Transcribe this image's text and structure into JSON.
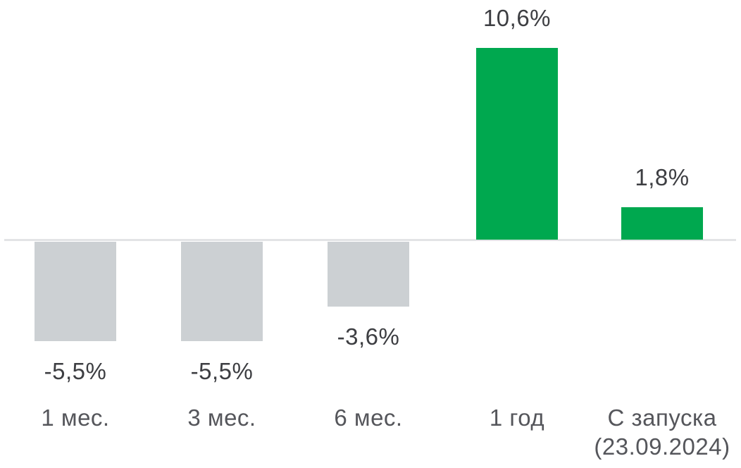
{
  "chart_data": {
    "type": "bar",
    "title": "",
    "xlabel": "",
    "ylabel": "",
    "categories": [
      "1 мес.",
      "3 мес.",
      "6 мес.",
      "1 год",
      "С запуска (23.09.2024)"
    ],
    "values": [
      -5.5,
      -5.5,
      -3.6,
      10.6,
      1.8
    ],
    "bars": [
      {
        "category": "1 мес.",
        "category_line2": "",
        "value": -5.5,
        "label": "-5,5%"
      },
      {
        "category": "3 мес.",
        "category_line2": "",
        "value": -5.5,
        "label": "-5,5%"
      },
      {
        "category": "6 мес.",
        "category_line2": "",
        "value": -3.6,
        "label": "-3,6%"
      },
      {
        "category": "1 год",
        "category_line2": "",
        "value": 10.6,
        "label": "10,6%"
      },
      {
        "category": "С запуска",
        "category_line2": "(23.09.2024)",
        "value": 1.8,
        "label": "1,8%"
      }
    ],
    "ylim": [
      -6.5,
      11.5
    ],
    "grid": false,
    "legend": false,
    "baseline": 0,
    "colors": {
      "positive_bar": "#00a84f",
      "negative_bar": "#ccd0d3",
      "value_label": "#3d3e42",
      "category_label": "#55565b",
      "axis_line": "#e3e4e6",
      "background": "#ffffff"
    }
  }
}
